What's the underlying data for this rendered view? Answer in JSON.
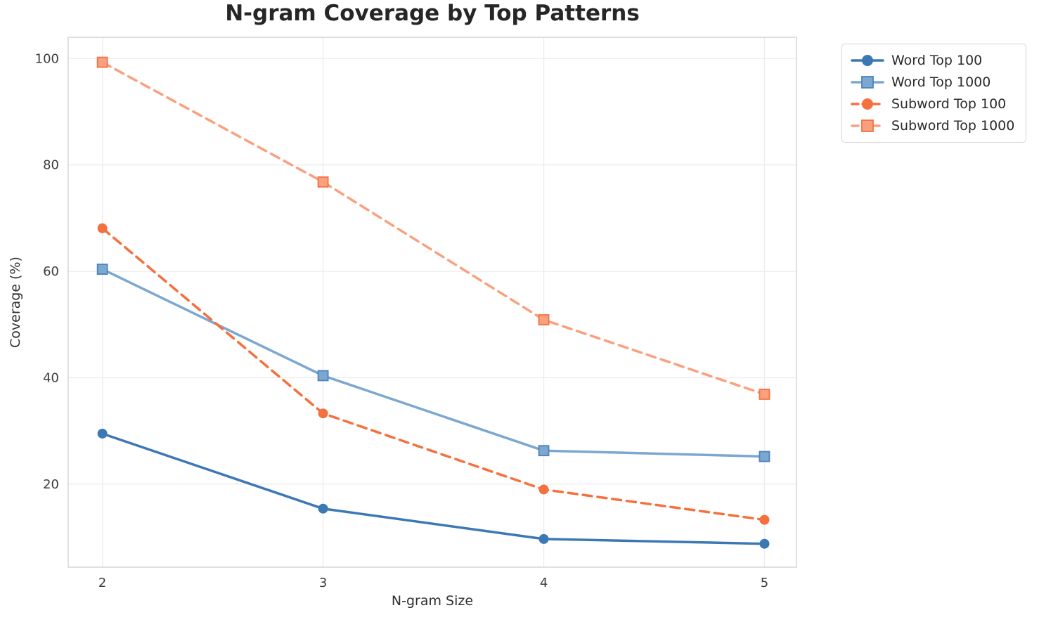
{
  "chart_data": {
    "type": "line",
    "title": "N-gram Coverage by Top Patterns",
    "xlabel": "N-gram Size",
    "ylabel": "Coverage (%)",
    "x": [
      2,
      3,
      4,
      5
    ],
    "xtick_labels": [
      "2",
      "3",
      "4",
      "5"
    ],
    "yticks": [
      20,
      40,
      60,
      80,
      100
    ],
    "ytick_labels": [
      "20",
      "40",
      "60",
      "80",
      "100"
    ],
    "xlim": [
      1.845,
      5.145
    ],
    "ylim": [
      4.4,
      104.0
    ],
    "grid": true,
    "legend_position": "outside-upper-right",
    "series": [
      {
        "name": "Word Top 100",
        "values": [
          29.5,
          15.4,
          9.7,
          8.8
        ],
        "color": "#3c79b4",
        "edge": "#3c79b4",
        "marker": "circle",
        "dash": "solid"
      },
      {
        "name": "Word Top 1000",
        "values": [
          60.4,
          40.4,
          26.3,
          25.2
        ],
        "color": "#7ba7d1",
        "edge": "#4d84bd",
        "marker": "square",
        "dash": "solid"
      },
      {
        "name": "Subword Top 100",
        "values": [
          68.1,
          33.3,
          19.0,
          13.3
        ],
        "color": "#f5703f",
        "edge": "#f5703f",
        "marker": "circle",
        "dash": "dashed"
      },
      {
        "name": "Subword Top 1000",
        "values": [
          99.3,
          76.8,
          50.9,
          36.9
        ],
        "color": "#f9a07e",
        "edge": "#f57242",
        "marker": "square",
        "dash": "dashed"
      }
    ],
    "colors": {
      "grid": "#ececec",
      "spine": "#d8d8d8",
      "tick_text": "#3c3c3c"
    }
  }
}
